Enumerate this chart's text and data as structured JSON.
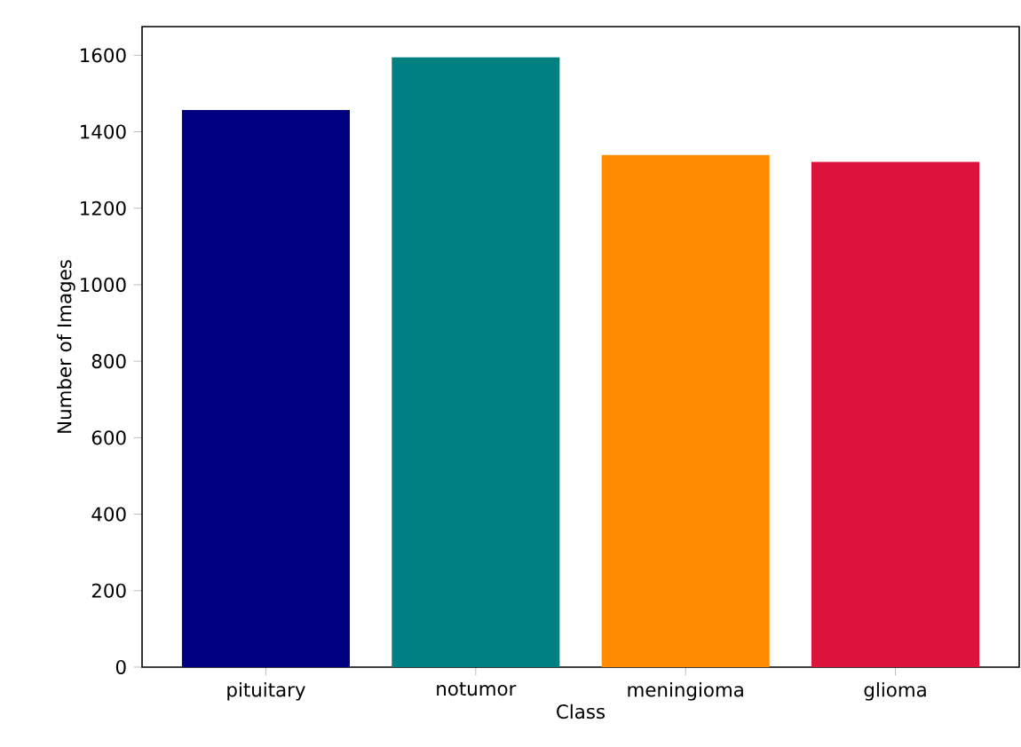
{
  "chart_data": {
    "type": "bar",
    "xlabel": "Class",
    "ylabel": "Number of Images",
    "categories": [
      "pituitary",
      "notumor",
      "meningioma",
      "glioma"
    ],
    "values": [
      1457,
      1595,
      1339,
      1321
    ],
    "colors": [
      "#000080",
      "#008080",
      "#ff8c00",
      "#dc143c"
    ],
    "ylim": [
      0,
      1675
    ],
    "yticks": [
      0,
      200,
      400,
      600,
      800,
      1000,
      1200,
      1400,
      1600
    ]
  }
}
